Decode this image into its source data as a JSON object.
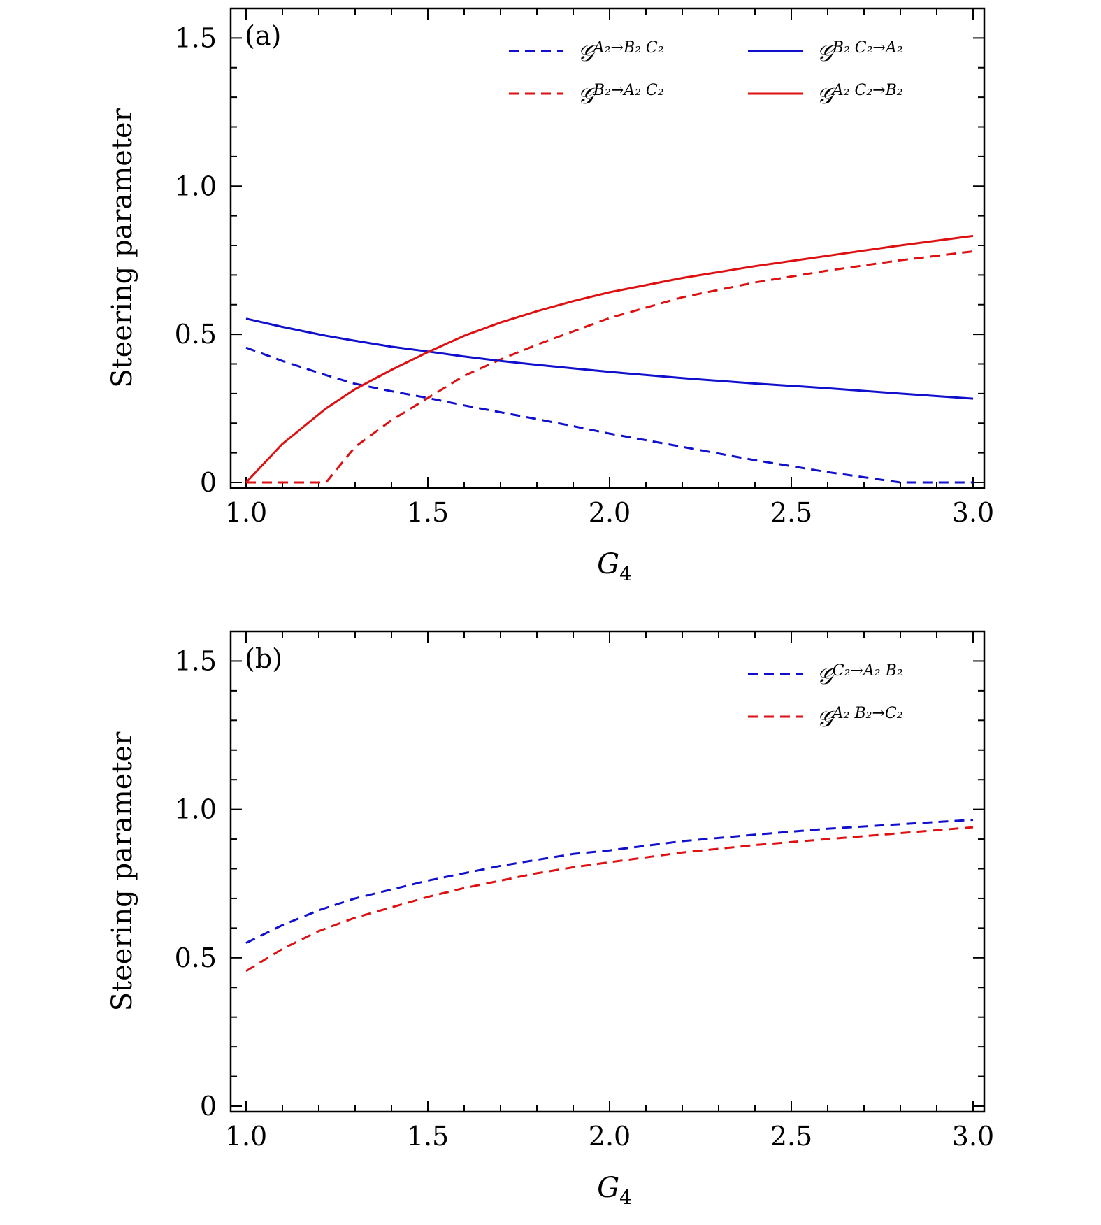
{
  "chart_data": [
    {
      "type": "line",
      "panel_label": "(a)",
      "xlabel": "G",
      "xlabel_sub": "4",
      "ylabel": "Steering parameter",
      "xlim": [
        1.0,
        3.0
      ],
      "ylim": [
        0,
        1.6
      ],
      "xticks": [
        "1.0",
        "1.5",
        "2.0",
        "2.5",
        "3.0"
      ],
      "yticks": [
        "0",
        "0.5",
        "1.0",
        "1.5"
      ],
      "legend_position": "top-right",
      "grid": false,
      "x": [
        1.0,
        1.1,
        1.2,
        1.22,
        1.3,
        1.4,
        1.5,
        1.6,
        1.7,
        1.8,
        1.9,
        2.0,
        2.2,
        2.4,
        2.6,
        2.8,
        3.0
      ],
      "series": [
        {
          "name": "𝒢",
          "name_sup": "A₂→B₂ C₂",
          "style": "dashed",
          "color": "#1010cc",
          "values": [
            0.455,
            0.41,
            0.37,
            0.362,
            0.333,
            0.308,
            0.285,
            0.26,
            0.237,
            0.214,
            0.19,
            0.165,
            0.12,
            0.075,
            0.035,
            0.0,
            0.0
          ]
        },
        {
          "name": "𝒢",
          "name_sup": "B₂→A₂ C₂",
          "style": "dashed",
          "color": "#dd1111",
          "values": [
            0.0,
            0.0,
            0.0,
            0.0,
            0.12,
            0.21,
            0.285,
            0.36,
            0.415,
            0.465,
            0.51,
            0.555,
            0.625,
            0.675,
            0.715,
            0.75,
            0.78
          ]
        },
        {
          "name": "𝒢",
          "name_sup": "B₂ C₂→A₂",
          "style": "solid",
          "color": "#1010cc",
          "values": [
            0.553,
            0.525,
            0.5,
            0.495,
            0.478,
            0.458,
            0.442,
            0.425,
            0.41,
            0.397,
            0.385,
            0.373,
            0.352,
            0.334,
            0.318,
            0.3,
            0.283
          ]
        },
        {
          "name": "𝒢",
          "name_sup": "A₂ C₂→B₂",
          "style": "solid",
          "color": "#dd1111",
          "values": [
            0.0,
            0.13,
            0.23,
            0.25,
            0.315,
            0.38,
            0.44,
            0.495,
            0.54,
            0.578,
            0.612,
            0.642,
            0.69,
            0.73,
            0.765,
            0.8,
            0.832
          ]
        }
      ]
    },
    {
      "type": "line",
      "panel_label": "(b)",
      "xlabel": "G",
      "xlabel_sub": "4",
      "ylabel": "Steering parameter",
      "xlim": [
        1.0,
        3.0
      ],
      "ylim": [
        0,
        1.6
      ],
      "xticks": [
        "1.0",
        "1.5",
        "2.0",
        "2.5",
        "3.0"
      ],
      "yticks": [
        "0",
        "0.5",
        "1.0",
        "1.5"
      ],
      "legend_position": "top-right",
      "grid": false,
      "x": [
        1.0,
        1.1,
        1.2,
        1.3,
        1.4,
        1.5,
        1.6,
        1.7,
        1.8,
        1.9,
        2.0,
        2.2,
        2.4,
        2.6,
        2.8,
        3.0
      ],
      "series": [
        {
          "name": "𝒢",
          "name_sup": "C₂→A₂ B₂",
          "style": "dashed",
          "color": "#1010cc",
          "values": [
            0.55,
            0.61,
            0.66,
            0.7,
            0.73,
            0.76,
            0.785,
            0.81,
            0.83,
            0.85,
            0.862,
            0.893,
            0.915,
            0.935,
            0.95,
            0.965
          ]
        },
        {
          "name": "𝒢",
          "name_sup": "A₂ B₂→C₂",
          "style": "dashed",
          "color": "#dd1111",
          "values": [
            0.455,
            0.53,
            0.59,
            0.635,
            0.67,
            0.705,
            0.735,
            0.76,
            0.785,
            0.805,
            0.822,
            0.855,
            0.88,
            0.9,
            0.92,
            0.94
          ]
        }
      ]
    }
  ]
}
